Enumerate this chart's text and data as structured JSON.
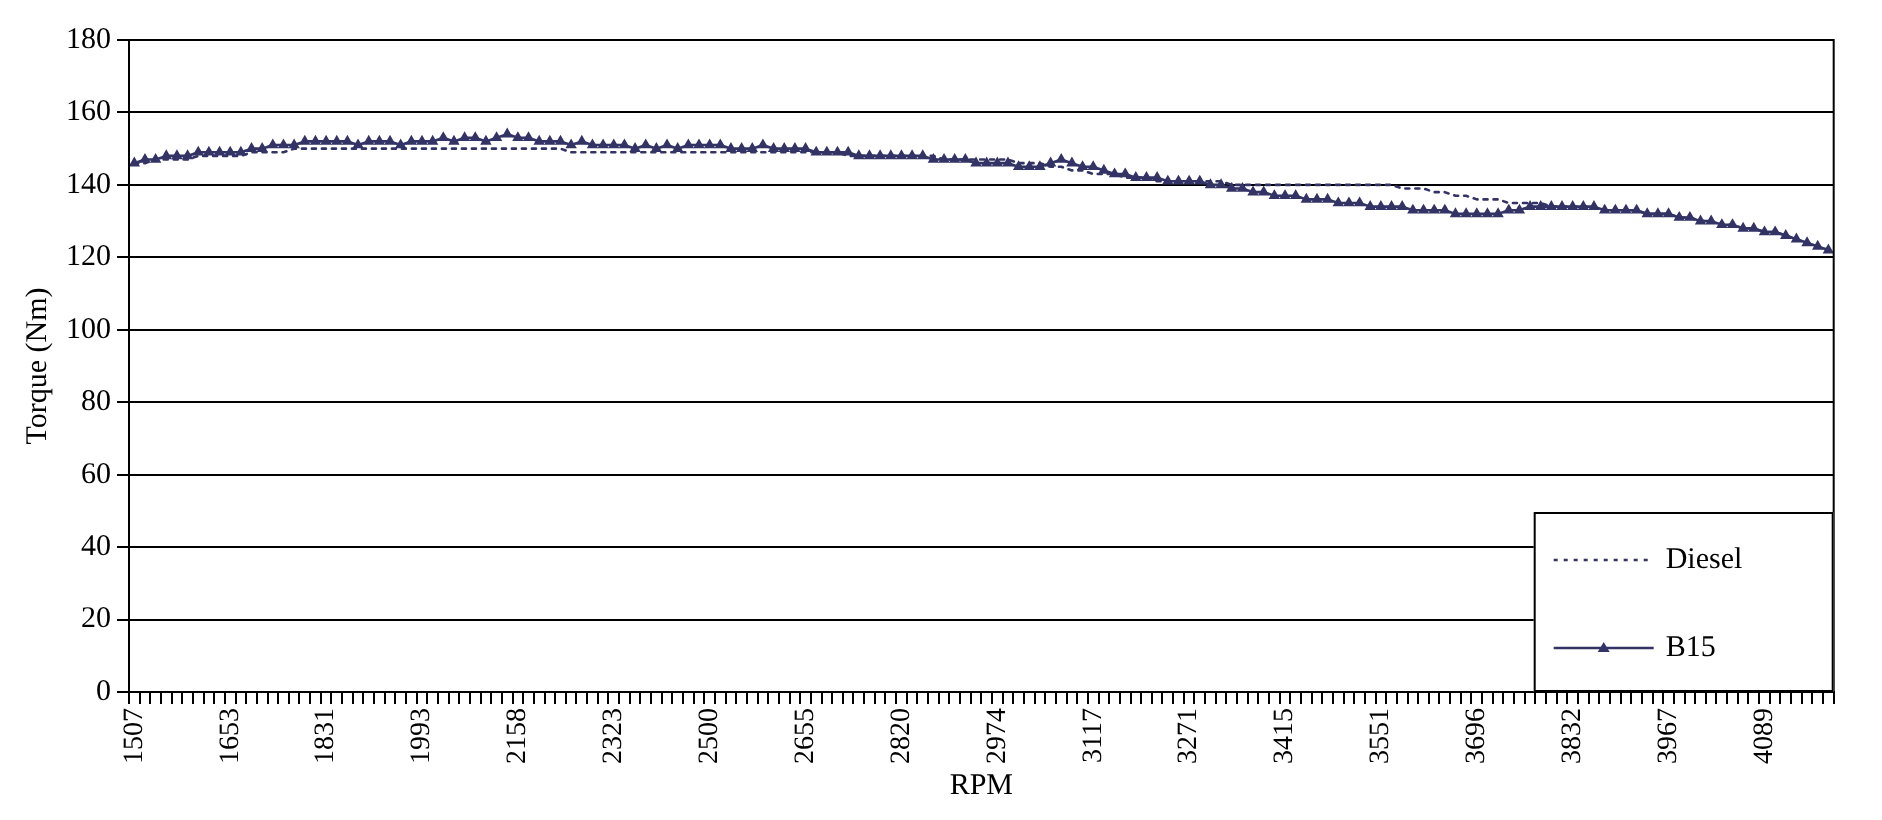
{
  "chart_data": {
    "type": "line",
    "xlabel": "RPM",
    "ylabel": "Torque (Nm)",
    "categories": [
      "1507",
      null,
      null,
      null,
      null,
      null,
      null,
      null,
      null,
      "1653",
      null,
      null,
      null,
      null,
      null,
      null,
      null,
      null,
      "1831",
      null,
      null,
      null,
      null,
      null,
      null,
      null,
      null,
      "1993",
      null,
      null,
      null,
      null,
      null,
      null,
      null,
      null,
      "2158",
      null,
      null,
      null,
      null,
      null,
      null,
      null,
      null,
      "2323",
      null,
      null,
      null,
      null,
      null,
      null,
      null,
      null,
      "2500",
      null,
      null,
      null,
      null,
      null,
      null,
      null,
      null,
      "2655",
      null,
      null,
      null,
      null,
      null,
      null,
      null,
      null,
      "2820",
      null,
      null,
      null,
      null,
      null,
      null,
      null,
      null,
      "2974",
      null,
      null,
      null,
      null,
      null,
      null,
      null,
      null,
      "3117",
      null,
      null,
      null,
      null,
      null,
      null,
      null,
      null,
      "3271",
      null,
      null,
      null,
      null,
      null,
      null,
      null,
      null,
      "3415",
      null,
      null,
      null,
      null,
      null,
      null,
      null,
      null,
      "3551",
      null,
      null,
      null,
      null,
      null,
      null,
      null,
      null,
      "3696",
      null,
      null,
      null,
      null,
      null,
      null,
      null,
      null,
      "3832",
      null,
      null,
      null,
      null,
      null,
      null,
      null,
      null,
      "3967",
      null,
      null,
      null,
      null,
      null,
      null,
      null,
      null,
      "4089",
      null,
      null,
      null,
      null,
      null,
      null
    ],
    "series": [
      {
        "name": "Diesel",
        "color": "#333366",
        "line_style": "dotted",
        "marker": "none",
        "values": [
          146,
          146,
          147,
          147,
          147,
          147,
          148,
          148,
          148,
          148,
          148,
          149,
          149,
          149,
          149,
          150,
          150,
          150,
          150,
          150,
          150,
          150,
          150,
          150,
          150,
          150,
          150,
          150,
          150,
          150,
          150,
          150,
          150,
          150,
          150,
          150,
          150,
          150,
          150,
          150,
          150,
          149,
          149,
          149,
          149,
          149,
          149,
          149,
          149,
          149,
          149,
          149,
          149,
          149,
          149,
          149,
          149,
          149,
          149,
          149,
          149,
          149,
          149,
          149,
          149,
          149,
          149,
          148,
          148,
          148,
          148,
          148,
          148,
          148,
          148,
          148,
          147,
          147,
          147,
          147,
          147,
          147,
          147,
          146,
          146,
          146,
          145,
          145,
          144,
          144,
          143,
          143,
          143,
          142,
          142,
          142,
          141,
          141,
          141,
          141,
          141,
          141,
          141,
          140,
          140,
          140,
          140,
          140,
          140,
          140,
          140,
          140,
          140,
          140,
          140,
          140,
          140,
          140,
          140,
          139,
          139,
          139,
          138,
          138,
          137,
          137,
          136,
          136,
          136,
          135,
          135,
          135,
          135,
          134,
          134,
          134,
          134,
          134,
          133,
          133,
          133,
          133,
          132,
          132,
          132,
          131,
          131,
          130,
          130,
          129,
          129,
          128,
          128,
          127,
          127,
          126,
          125,
          124,
          123,
          122
        ]
      },
      {
        "name": "B15",
        "color": "#333366",
        "line_style": "solid",
        "marker": "triangle",
        "values": [
          146,
          147,
          147,
          148,
          148,
          148,
          149,
          149,
          149,
          149,
          149,
          150,
          150,
          151,
          151,
          151,
          152,
          152,
          152,
          152,
          152,
          151,
          152,
          152,
          152,
          151,
          152,
          152,
          152,
          153,
          152,
          153,
          153,
          152,
          153,
          154,
          153,
          153,
          152,
          152,
          152,
          151,
          152,
          151,
          151,
          151,
          151,
          150,
          151,
          150,
          151,
          150,
          151,
          151,
          151,
          151,
          150,
          150,
          150,
          151,
          150,
          150,
          150,
          150,
          149,
          149,
          149,
          149,
          148,
          148,
          148,
          148,
          148,
          148,
          148,
          147,
          147,
          147,
          147,
          146,
          146,
          146,
          146,
          145,
          145,
          145,
          146,
          147,
          146,
          145,
          145,
          144,
          143,
          143,
          142,
          142,
          142,
          141,
          141,
          141,
          141,
          140,
          140,
          139,
          139,
          138,
          138,
          137,
          137,
          137,
          136,
          136,
          136,
          135,
          135,
          135,
          134,
          134,
          134,
          134,
          133,
          133,
          133,
          133,
          132,
          132,
          132,
          132,
          132,
          133,
          133,
          134,
          134,
          134,
          134,
          134,
          134,
          134,
          133,
          133,
          133,
          133,
          132,
          132,
          132,
          131,
          131,
          130,
          130,
          129,
          129,
          128,
          128,
          127,
          127,
          126,
          125,
          124,
          123,
          122
        ]
      }
    ],
    "ylim": [
      0,
      180
    ],
    "yticks": [
      0,
      20,
      40,
      60,
      80,
      100,
      120,
      140,
      160,
      180
    ],
    "grid": "y",
    "legend": "bottom right"
  }
}
